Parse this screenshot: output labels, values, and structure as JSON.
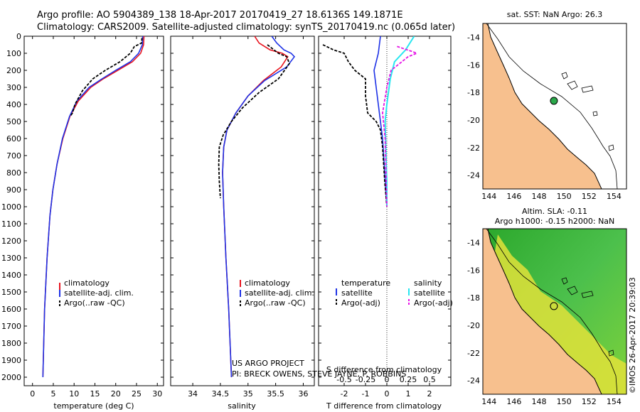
{
  "header": {
    "line1": "Argo profile: AO 5904389_138 18-Apr-2017 20170419_27 18.6136S 149.1871E",
    "line2": "Climatology: CARS2009. Satellite-adjusted climatology: synTS_20170419.nc (0.065d later)"
  },
  "colors": {
    "climatology": "#e8141e",
    "satellite": "#1e32e6",
    "argo": "#000000",
    "sal_satellite": "#28e6f0",
    "sal_argo": "#e614e6",
    "land": "#f7c08e"
  },
  "side": {
    "watermark": "©IMOS 26-Apr-2017 20:39:03",
    "project_line1": "US ARGO PROJECT",
    "project_line2": "PI: BRECK OWENS, STEVE JAYNE, P. ROBBINS"
  },
  "chart_data": [
    {
      "id": "temperature",
      "type": "line",
      "xlabel": "temperature (deg C)",
      "ylabel": "",
      "xlim": [
        -2,
        31.5
      ],
      "ylim": [
        2050,
        0
      ],
      "xticks": [
        0,
        5,
        10,
        15,
        20,
        25,
        30
      ],
      "yticks": [
        0,
        100,
        200,
        300,
        400,
        500,
        600,
        700,
        800,
        900,
        1000,
        1100,
        1200,
        1300,
        1400,
        1500,
        1600,
        1700,
        1800,
        1900,
        2000
      ],
      "legend": [
        "climatology",
        "satellite-adj. clim.",
        "Argo(..raw -QC)"
      ],
      "legend_position": "lower-middle",
      "series": [
        {
          "name": "climatology",
          "x": [
            26.8,
            26.7,
            26.0,
            24.0,
            20.5,
            17.0,
            14.0,
            11.0,
            9.0,
            7.3,
            5.9,
            4.9,
            4.2,
            3.5,
            2.9,
            2.5
          ],
          "y": [
            0,
            50,
            100,
            150,
            200,
            250,
            300,
            380,
            470,
            600,
            750,
            900,
            1050,
            1300,
            1600,
            2000
          ]
        },
        {
          "name": "satellite-adj. clim.",
          "x": [
            26.5,
            26.4,
            25.5,
            23.5,
            20.0,
            16.7,
            13.6,
            10.7,
            8.9,
            7.2,
            5.9,
            4.9,
            4.2,
            3.5,
            2.9,
            2.5
          ],
          "y": [
            0,
            50,
            100,
            150,
            200,
            250,
            300,
            380,
            470,
            600,
            750,
            900,
            1050,
            1300,
            1600,
            2000
          ]
        },
        {
          "name": "Argo(..raw -QC)",
          "x": [
            26.3,
            26.2,
            24.5,
            23.5,
            21.0,
            17.5,
            14.5,
            12.0,
            10.2,
            9.6,
            9.1
          ],
          "y": [
            10,
            40,
            60,
            100,
            150,
            200,
            250,
            320,
            400,
            450,
            470
          ]
        }
      ]
    },
    {
      "id": "salinity",
      "type": "line",
      "xlabel": "salinity",
      "xlim": [
        33.6,
        36.2
      ],
      "ylim": [
        2050,
        0
      ],
      "xticks": [
        34,
        34.5,
        35,
        35.5,
        36
      ],
      "legend": [
        "climatology",
        "satellite-adj. clim.",
        "Argo(..raw -QC)"
      ],
      "legend_position": "lower-middle",
      "series": [
        {
          "name": "climatology",
          "x": [
            35.12,
            35.2,
            35.4,
            35.62,
            35.72,
            35.6,
            35.28,
            35.0,
            34.78,
            34.62,
            34.56,
            34.54,
            34.56,
            34.6,
            34.65,
            34.7
          ],
          "y": [
            0,
            40,
            80,
            100,
            120,
            180,
            260,
            350,
            450,
            550,
            650,
            800,
            1000,
            1300,
            1600,
            2000
          ]
        },
        {
          "name": "satellite-adj. clim.",
          "x": [
            35.43,
            35.52,
            35.65,
            35.78,
            35.84,
            35.7,
            35.3,
            35.0,
            34.78,
            34.62,
            34.56,
            34.54,
            34.56,
            34.6,
            34.65,
            34.7
          ],
          "y": [
            0,
            40,
            80,
            100,
            120,
            180,
            260,
            350,
            450,
            550,
            650,
            800,
            1000,
            1300,
            1600,
            2000
          ]
        },
        {
          "name": "Argo(..raw -QC)",
          "x": [
            35.35,
            35.45,
            35.55,
            35.7,
            35.75,
            35.55,
            35.2,
            34.9,
            34.7,
            34.55,
            34.48,
            34.47,
            34.48,
            34.5
          ],
          "y": [
            50,
            75,
            100,
            120,
            160,
            250,
            330,
            420,
            500,
            580,
            650,
            750,
            850,
            950
          ]
        }
      ]
    },
    {
      "id": "difference",
      "type": "line",
      "xlabel": "T difference from climatology",
      "x2label": "S difference from climatology",
      "xlim": [
        -3.2,
        3.0
      ],
      "x2lim": [
        -0.8,
        0.75
      ],
      "ylim": [
        2050,
        0
      ],
      "xticks": [
        -2,
        -1,
        0,
        1,
        2
      ],
      "x2ticks": [
        -0.5,
        -0.25,
        0,
        0.25,
        0.5
      ],
      "legend_headers": [
        "temperature",
        "salinity"
      ],
      "legend": [
        "satellite",
        "Argo(-adj)",
        "satellite",
        "Argo(-adj)"
      ],
      "legend_position": "top-inner",
      "series": [
        {
          "name": "T satellite",
          "x": [
            -0.3,
            -0.4,
            -0.6,
            -0.5,
            -0.4,
            -0.3,
            -0.2,
            -0.1,
            0
          ],
          "y": [
            0,
            100,
            200,
            300,
            400,
            500,
            600,
            800,
            1000
          ]
        },
        {
          "name": "T Argo(-adj)",
          "x": [
            -3.0,
            -2.5,
            -2.0,
            -1.8,
            -1.5,
            -1.0,
            -1.0,
            -0.9,
            -0.5,
            -0.3,
            -0.2,
            -0.1,
            0
          ],
          "y": [
            50,
            80,
            100,
            150,
            200,
            250,
            350,
            450,
            500,
            550,
            650,
            850,
            1000
          ]
        },
        {
          "name": "S satellite",
          "x": [
            0.32,
            0.22,
            0.09,
            0.04,
            0.0,
            -0.02,
            -0.01,
            0.0,
            0.0
          ],
          "y": [
            0,
            80,
            150,
            250,
            400,
            500,
            700,
            850,
            1000
          ]
        },
        {
          "name": "S Argo(-adj)",
          "x": [
            0.12,
            0.3,
            0.35,
            0.25,
            0.05,
            0.0,
            -0.05,
            -0.02,
            0.0
          ],
          "y": [
            60,
            90,
            100,
            120,
            200,
            300,
            450,
            600,
            1000
          ]
        }
      ]
    },
    {
      "id": "sst_map",
      "type": "map",
      "title": "sat. SST: NaN Argo: 26.3",
      "xlim": [
        143.5,
        155
      ],
      "ylim": [
        -25,
        -13
      ],
      "xticks": [
        144,
        146,
        148,
        150,
        152,
        154
      ],
      "yticks": [
        -14,
        -16,
        -18,
        -20,
        -22,
        -24
      ],
      "float_position": {
        "lon": 149.19,
        "lat": -18.61
      }
    },
    {
      "id": "sla_map",
      "type": "map",
      "title_line1": "Altim. SLA: -0.11",
      "title_line2": "Argo h1000: -0.15 h2000: NaN",
      "xlim": [
        143.5,
        155
      ],
      "ylim": [
        -25,
        -13
      ],
      "xticks": [
        144,
        146,
        148,
        150,
        152,
        154
      ],
      "yticks": [
        -14,
        -16,
        -18,
        -20,
        -22,
        -24
      ],
      "float_position": {
        "lon": 149.19,
        "lat": -18.61
      }
    }
  ]
}
